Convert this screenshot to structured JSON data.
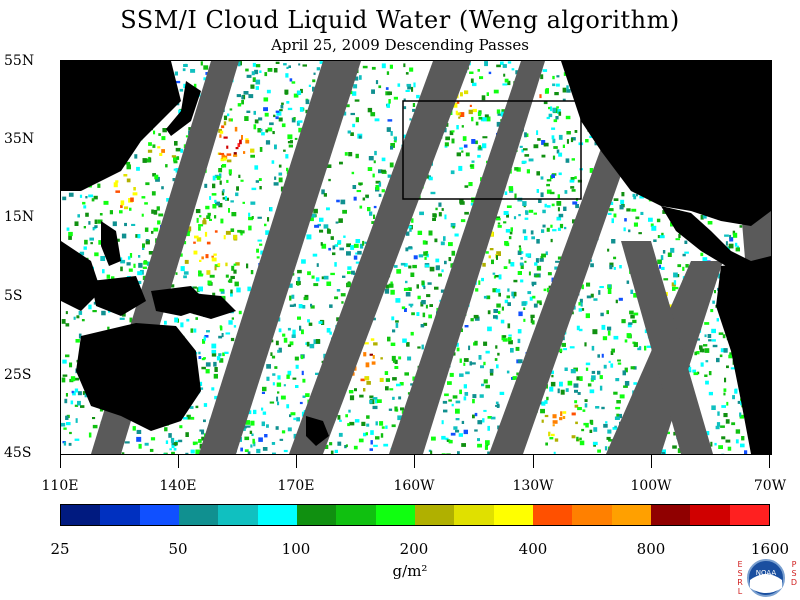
{
  "title": "SSM/I Cloud Liquid Water (Weng algorithm)",
  "subtitle": "April 25, 2009  Descending Passes",
  "lat_labels": [
    "55N",
    "35N",
    "15N",
    "5S",
    "25S",
    "45S"
  ],
  "lon_labels": [
    "110E",
    "140E",
    "170E",
    "160W",
    "130W",
    "100W",
    "70W"
  ],
  "colorbar": {
    "colors": [
      "#001a80",
      "#0030c0",
      "#1050ff",
      "#109090",
      "#10c0c0",
      "#00ffff",
      "#109010",
      "#10c010",
      "#10ff10",
      "#b0b000",
      "#e0e000",
      "#ffff00",
      "#ff5000",
      "#ff8000",
      "#ffa000",
      "#900000",
      "#d00000",
      "#ff2020"
    ],
    "labels": [
      "25",
      "50",
      "100",
      "200",
      "400",
      "800",
      "1600"
    ]
  },
  "unit": "g/m²",
  "logo": {
    "name": "noaa-logo",
    "left_text": "ESRL",
    "right_text": "PSD",
    "center_text": "NOAA"
  },
  "colors": {
    "land": "#000000",
    "gap": "#5a5a5a",
    "ocean": "#ffffff"
  }
}
